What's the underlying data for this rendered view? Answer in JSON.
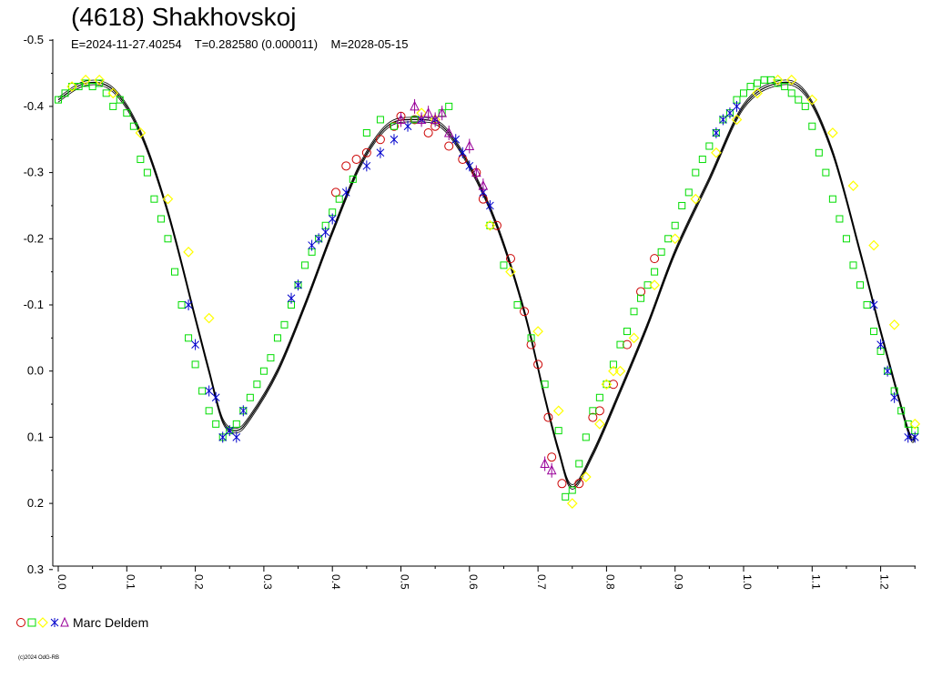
{
  "header": {
    "title": "(4618) Shakhovskoj",
    "subtitle": "E=2024-11-27.40254    T=0.282580 (0.000011)    M=2028-05-15"
  },
  "legend": {
    "observer": "Marc Deldem"
  },
  "footer": {
    "copyright": "(c)2024 OdG-RB"
  },
  "colors": {
    "circle": "#cc0000",
    "square": "#00dd00",
    "diamond": "#ffff00",
    "star": "#0000cc",
    "triangle": "#990099",
    "curve": "#000000"
  },
  "chart_data": {
    "type": "scatter",
    "title": "(4618) Shakhovskoj",
    "xlabel": "",
    "ylabel": "",
    "xlim": [
      0.0,
      1.25
    ],
    "ylim": [
      -0.5,
      0.3
    ],
    "y_inverted": true,
    "x_ticks": [
      "0.0",
      "0.1",
      "0.2",
      "0.3",
      "0.4",
      "0.5",
      "0.6",
      "0.7",
      "0.8",
      "0.9",
      "1.0",
      "1.1",
      "1.2"
    ],
    "y_ticks": [
      "-0.5",
      "-0.4",
      "-0.3",
      "-0.2",
      "-0.1",
      "0.0",
      "0.1",
      "0.2",
      "0.3"
    ],
    "grid": false,
    "fit_curve": {
      "name": "fourier fit",
      "x": [
        0.0,
        0.04,
        0.08,
        0.12,
        0.16,
        0.2,
        0.22,
        0.24,
        0.26,
        0.28,
        0.32,
        0.36,
        0.4,
        0.44,
        0.48,
        0.52,
        0.56,
        0.6,
        0.64,
        0.68,
        0.71,
        0.73,
        0.75,
        0.78,
        0.82,
        0.86,
        0.9,
        0.95,
        1.0,
        1.05,
        1.09,
        1.13,
        1.17,
        1.2,
        1.24,
        1.25
      ],
      "y": [
        -0.41,
        -0.435,
        -0.425,
        -0.36,
        -0.24,
        -0.08,
        0.0,
        0.075,
        0.09,
        0.07,
        0.0,
        -0.1,
        -0.21,
        -0.31,
        -0.37,
        -0.38,
        -0.37,
        -0.31,
        -0.22,
        -0.09,
        0.04,
        0.12,
        0.175,
        0.125,
        0.03,
        -0.07,
        -0.18,
        -0.29,
        -0.4,
        -0.435,
        -0.42,
        -0.33,
        -0.18,
        -0.06,
        0.09,
        0.1
      ]
    },
    "series": [
      {
        "marker": "circle",
        "color": "#cc0000",
        "x": [
          0.405,
          0.42,
          0.435,
          0.45,
          0.47,
          0.49,
          0.5,
          0.52,
          0.54,
          0.55,
          0.57,
          0.59,
          0.61,
          0.62,
          0.64,
          0.66,
          0.68,
          0.69,
          0.7,
          0.715,
          0.72,
          0.735,
          0.76,
          0.78,
          0.79,
          0.81,
          0.83,
          0.85,
          0.87
        ],
        "y": [
          -0.27,
          -0.31,
          -0.32,
          -0.33,
          -0.35,
          -0.37,
          -0.385,
          -0.38,
          -0.36,
          -0.37,
          -0.34,
          -0.32,
          -0.3,
          -0.26,
          -0.22,
          -0.17,
          -0.09,
          -0.04,
          -0.01,
          0.07,
          0.13,
          0.17,
          0.17,
          0.07,
          0.06,
          0.02,
          -0.04,
          -0.12,
          -0.17
        ]
      },
      {
        "marker": "square",
        "color": "#00dd00",
        "x": [
          0.0,
          0.01,
          0.02,
          0.03,
          0.04,
          0.05,
          0.06,
          0.07,
          0.08,
          0.09,
          0.1,
          0.11,
          0.12,
          0.13,
          0.14,
          0.15,
          0.16,
          0.17,
          0.18,
          0.19,
          0.2,
          0.21,
          0.22,
          0.23,
          0.24,
          0.25,
          0.26,
          0.27,
          0.28,
          0.29,
          0.3,
          0.31,
          0.32,
          0.33,
          0.34,
          0.35,
          0.36,
          0.37,
          0.38,
          0.39,
          0.4,
          0.41,
          0.43,
          0.45,
          0.47,
          0.49,
          0.52,
          0.56,
          0.57,
          0.63,
          0.65,
          0.67,
          0.69,
          0.71,
          0.73,
          0.74,
          0.75,
          0.76,
          0.77,
          0.78,
          0.79,
          0.8,
          0.81,
          0.82,
          0.83,
          0.84,
          0.85,
          0.86,
          0.87,
          0.88,
          0.89,
          0.9,
          0.91,
          0.92,
          0.93,
          0.94,
          0.95,
          0.96,
          0.97,
          0.98,
          0.99,
          1.0,
          1.01,
          1.02,
          1.03,
          1.04,
          1.05,
          1.06,
          1.07,
          1.08,
          1.09,
          1.1,
          1.11,
          1.12,
          1.13,
          1.14,
          1.15,
          1.16,
          1.17,
          1.18,
          1.19,
          1.2,
          1.21,
          1.22,
          1.23,
          1.24,
          1.25
        ],
        "y": [
          -0.41,
          -0.42,
          -0.43,
          -0.43,
          -0.435,
          -0.43,
          -0.435,
          -0.42,
          -0.4,
          -0.41,
          -0.39,
          -0.37,
          -0.32,
          -0.3,
          -0.26,
          -0.23,
          -0.2,
          -0.15,
          -0.1,
          -0.05,
          -0.01,
          0.03,
          0.06,
          0.08,
          0.1,
          0.09,
          0.08,
          0.06,
          0.04,
          0.02,
          0.0,
          -0.02,
          -0.05,
          -0.07,
          -0.1,
          -0.13,
          -0.16,
          -0.18,
          -0.2,
          -0.22,
          -0.24,
          -0.26,
          -0.29,
          -0.36,
          -0.38,
          -0.37,
          -0.38,
          -0.39,
          -0.4,
          -0.22,
          -0.16,
          -0.1,
          -0.05,
          0.02,
          0.09,
          0.19,
          0.18,
          0.14,
          0.1,
          0.06,
          0.04,
          0.02,
          -0.01,
          -0.04,
          -0.06,
          -0.09,
          -0.11,
          -0.13,
          -0.15,
          -0.18,
          -0.2,
          -0.22,
          -0.25,
          -0.27,
          -0.3,
          -0.32,
          -0.34,
          -0.36,
          -0.38,
          -0.39,
          -0.41,
          -0.42,
          -0.43,
          -0.435,
          -0.44,
          -0.44,
          -0.435,
          -0.43,
          -0.42,
          -0.41,
          -0.4,
          -0.37,
          -0.33,
          -0.3,
          -0.26,
          -0.23,
          -0.2,
          -0.16,
          -0.13,
          -0.1,
          -0.06,
          -0.03,
          0.0,
          0.03,
          0.06,
          0.08,
          0.09
        ]
      },
      {
        "marker": "diamond",
        "color": "#ffff00",
        "x": [
          0.02,
          0.04,
          0.06,
          0.08,
          0.12,
          0.16,
          0.19,
          0.22,
          0.53,
          0.55,
          0.63,
          0.66,
          0.7,
          0.73,
          0.75,
          0.77,
          0.79,
          0.8,
          0.81,
          0.82,
          0.84,
          0.87,
          0.9,
          0.93,
          0.96,
          0.99,
          1.02,
          1.05,
          1.07,
          1.1,
          1.13,
          1.16,
          1.19,
          1.22,
          1.25
        ],
        "y": [
          -0.43,
          -0.44,
          -0.44,
          -0.42,
          -0.36,
          -0.26,
          -0.18,
          -0.08,
          -0.39,
          -0.38,
          -0.22,
          -0.15,
          -0.06,
          0.06,
          0.2,
          0.16,
          0.08,
          0.02,
          0.0,
          0.0,
          -0.05,
          -0.13,
          -0.2,
          -0.26,
          -0.33,
          -0.38,
          -0.42,
          -0.44,
          -0.44,
          -0.41,
          -0.36,
          -0.28,
          -0.19,
          -0.07,
          0.08
        ]
      },
      {
        "marker": "star",
        "color": "#0000cc",
        "x": [
          0.19,
          0.2,
          0.22,
          0.23,
          0.24,
          0.25,
          0.26,
          0.27,
          0.34,
          0.35,
          0.37,
          0.38,
          0.39,
          0.4,
          0.42,
          0.45,
          0.47,
          0.49,
          0.51,
          0.53,
          0.55,
          0.58,
          0.59,
          0.6,
          0.62,
          0.63,
          0.96,
          0.97,
          0.98,
          0.99,
          1.19,
          1.2,
          1.21,
          1.22,
          1.24,
          1.25
        ],
        "y": [
          -0.1,
          -0.04,
          0.03,
          0.04,
          0.1,
          0.09,
          0.1,
          0.06,
          -0.11,
          -0.13,
          -0.19,
          -0.2,
          -0.21,
          -0.23,
          -0.27,
          -0.31,
          -0.33,
          -0.35,
          -0.37,
          -0.38,
          -0.38,
          -0.35,
          -0.33,
          -0.31,
          -0.27,
          -0.25,
          -0.36,
          -0.38,
          -0.39,
          -0.4,
          -0.1,
          -0.04,
          0.0,
          0.04,
          0.1,
          0.1
        ]
      },
      {
        "marker": "triangle",
        "color": "#990099",
        "x": [
          0.5,
          0.52,
          0.53,
          0.54,
          0.55,
          0.56,
          0.57,
          0.6,
          0.61,
          0.62,
          0.71,
          0.72
        ],
        "y": [
          -0.38,
          -0.4,
          -0.38,
          -0.39,
          -0.38,
          -0.39,
          -0.36,
          -0.34,
          -0.3,
          -0.28,
          0.14,
          0.15
        ]
      }
    ]
  }
}
